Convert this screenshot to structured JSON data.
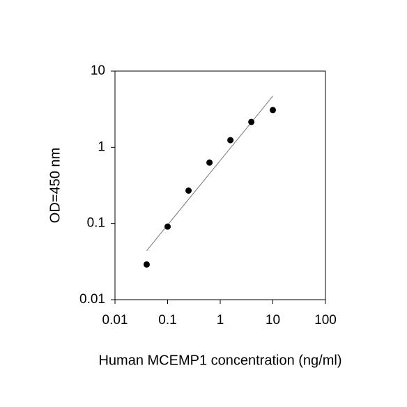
{
  "chart_data": {
    "type": "scatter",
    "x_label": "Human MCEMP1 concentration (ng/ml)",
    "y_label": "OD=450 nm",
    "x": [
      0.04,
      0.1,
      0.25,
      0.625,
      1.5625,
      3.9,
      10
    ],
    "values": [
      0.029,
      0.091,
      0.27,
      0.63,
      1.24,
      2.15,
      3.08
    ],
    "color": "#000000",
    "fit_line": {
      "x": [
        0.04,
        10
      ],
      "values": [
        0.044,
        4.7
      ],
      "color": "#777777"
    },
    "xlim": [
      0.01,
      100
    ],
    "ylim": [
      0.01,
      10
    ],
    "xticks": [
      0.01,
      0.1,
      1,
      10,
      100
    ],
    "yticks": [
      0.01,
      0.1,
      1,
      10
    ],
    "xscale": "log",
    "yscale": "log",
    "grid": false
  }
}
